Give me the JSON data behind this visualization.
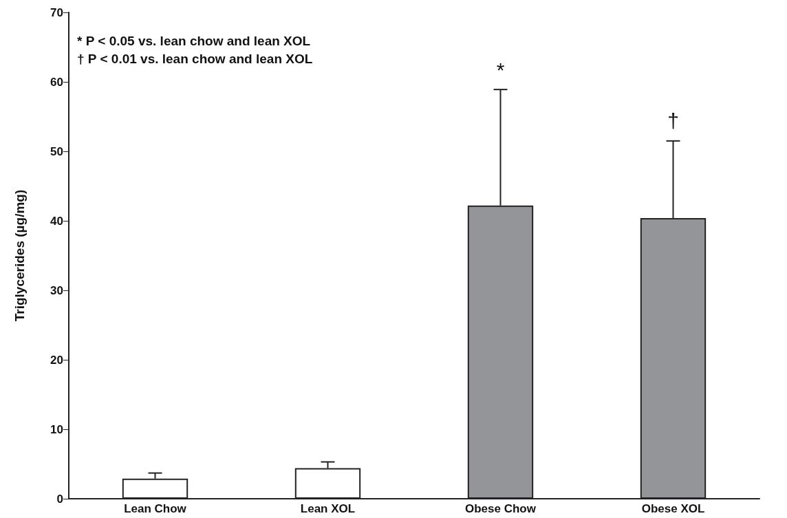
{
  "chart_data": {
    "type": "bar",
    "ylabel": "Triglycerides (µg/mg)",
    "categories": [
      "Lean Chow",
      "Lean XOL",
      "Obese Chow",
      "Obese XOL"
    ],
    "values": [
      2.9,
      4.4,
      42.2,
      40.4
    ],
    "colors": [
      "#ffffff",
      "#ffffff",
      "#939598",
      "#939598"
    ],
    "errors": [
      [
        2.9,
        3.7
      ],
      [
        4.4,
        5.3
      ],
      [
        42.2,
        58.9
      ],
      [
        40.4,
        51.5
      ]
    ],
    "ylim": [
      0,
      70
    ],
    "yticks": [
      0,
      10,
      20,
      30,
      40,
      50,
      60,
      70
    ],
    "grid": false,
    "annotations": [
      "* P < 0.05 vs. lean chow and lean XOL",
      "† P < 0.01 vs. lean chow and lean XOL",
      "*",
      "†"
    ]
  }
}
